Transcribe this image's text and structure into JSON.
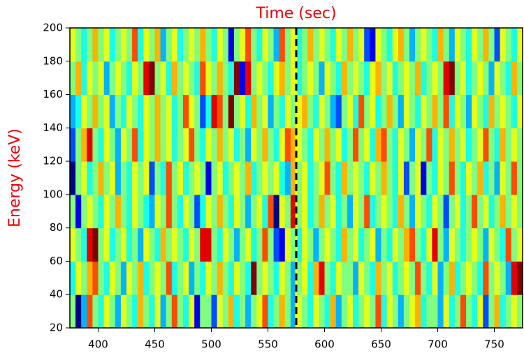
{
  "chart_data": {
    "type": "heatmap",
    "title": "Time (sec)",
    "ylabel": "Energy (keV)",
    "title_color": "#e8000b",
    "xlim": [
      375,
      775
    ],
    "xticks": [
      400,
      450,
      500,
      550,
      600,
      650,
      700,
      750
    ],
    "ylim": [
      20,
      200
    ],
    "yticks": [
      20,
      40,
      60,
      80,
      100,
      120,
      140,
      160,
      180,
      200
    ],
    "ybins": [
      20,
      40,
      60,
      80,
      100,
      120,
      140,
      160,
      180,
      200
    ],
    "colormap": "jet",
    "zlim": [
      0,
      10
    ],
    "vline": {
      "x": 575,
      "colors": [
        "#ffff00",
        "#000000"
      ]
    },
    "z": [
      [
        5,
        0,
        3,
        8,
        5,
        4,
        6,
        5,
        3,
        6,
        5,
        4,
        7,
        5,
        4,
        6,
        3,
        5,
        8,
        5,
        4,
        6,
        1,
        5,
        5,
        2,
        6,
        5,
        7,
        4,
        5,
        3,
        5,
        6,
        8,
        4,
        5,
        7,
        5,
        3,
        6,
        5,
        4,
        6,
        5,
        4,
        7,
        3,
        5,
        6,
        4,
        5,
        6,
        5,
        8,
        4,
        6,
        5,
        3,
        5,
        6,
        7,
        4,
        5,
        5,
        3,
        6,
        4,
        5,
        8,
        5,
        4,
        6,
        2,
        5,
        7,
        4,
        5,
        6,
        5
      ],
      [
        4,
        6,
        5,
        7,
        8,
        5,
        4,
        6,
        5,
        3,
        6,
        5,
        7,
        4,
        5,
        6,
        5,
        8,
        4,
        5,
        6,
        3,
        5,
        4,
        6,
        5,
        7,
        5,
        4,
        6,
        5,
        4,
        10,
        5,
        6,
        5,
        4,
        6,
        5,
        3,
        5,
        6,
        4,
        7,
        9,
        5,
        4,
        6,
        5,
        5,
        3,
        6,
        5,
        4,
        7,
        5,
        6,
        4,
        5,
        6,
        5,
        8,
        5,
        4,
        6,
        3,
        5,
        7,
        4,
        5,
        6,
        5,
        4,
        8,
        5,
        6,
        5,
        3,
        9,
        10
      ],
      [
        6,
        5,
        4,
        9,
        10,
        5,
        6,
        4,
        5,
        6,
        4,
        5,
        3,
        6,
        5,
        4,
        7,
        5,
        6,
        5,
        4,
        6,
        5,
        9,
        9,
        5,
        4,
        6,
        5,
        3,
        5,
        6,
        4,
        5,
        8,
        5,
        2,
        1,
        6,
        5,
        4,
        6,
        5,
        3,
        5,
        6,
        5,
        4,
        7,
        5,
        6,
        4,
        5,
        6,
        3,
        5,
        4,
        6,
        5,
        7,
        8,
        5,
        4,
        6,
        9,
        5,
        3,
        6,
        5,
        4,
        5,
        6,
        5,
        3,
        6,
        5,
        4,
        8,
        5,
        6
      ],
      [
        5,
        1,
        5,
        6,
        5,
        4,
        6,
        5,
        7,
        5,
        4,
        6,
        5,
        4,
        3,
        6,
        5,
        8,
        5,
        4,
        6,
        5,
        2,
        4,
        6,
        5,
        7,
        5,
        4,
        6,
        5,
        3,
        5,
        6,
        4,
        8,
        0,
        6,
        5,
        9,
        5,
        6,
        4,
        5,
        7,
        5,
        6,
        4,
        5,
        3,
        6,
        5,
        8,
        4,
        5,
        6,
        5,
        4,
        7,
        5,
        3,
        6,
        5,
        4,
        6,
        5,
        2,
        5,
        6,
        4,
        5,
        8,
        5,
        6,
        4,
        5,
        7,
        5,
        6,
        5
      ],
      [
        0,
        5,
        6,
        4,
        5,
        7,
        5,
        6,
        3,
        5,
        4,
        6,
        5,
        6,
        2,
        5,
        4,
        8,
        5,
        6,
        4,
        5,
        6,
        5,
        1,
        5,
        6,
        4,
        5,
        6,
        5,
        7,
        4,
        5,
        6,
        5,
        6,
        4,
        3,
        7,
        5,
        6,
        4,
        5,
        6,
        8,
        5,
        4,
        7,
        5,
        6,
        5,
        4,
        6,
        5,
        7,
        5,
        4,
        6,
        2,
        5,
        6,
        1,
        5,
        4,
        6,
        5,
        8,
        5,
        4,
        6,
        5,
        7,
        4,
        5,
        3,
        6,
        5,
        8,
        5
      ],
      [
        2,
        5,
        7,
        9,
        5,
        4,
        6,
        5,
        3,
        6,
        5,
        8,
        4,
        6,
        5,
        7,
        5,
        6,
        4,
        5,
        6,
        8,
        5,
        4,
        6,
        5,
        7,
        5,
        6,
        4,
        5,
        3,
        6,
        5,
        7,
        5,
        4,
        6,
        8,
        7,
        6,
        5,
        4,
        6,
        5,
        7,
        5,
        6,
        4,
        5,
        8,
        5,
        6,
        4,
        7,
        8,
        5,
        4,
        6,
        5,
        3,
        6,
        5,
        8,
        4,
        6,
        5,
        7,
        5,
        6,
        4,
        5,
        6,
        8,
        5,
        4,
        7,
        5,
        6,
        5
      ],
      [
        3,
        4,
        6,
        5,
        7,
        5,
        6,
        3,
        5,
        4,
        6,
        5,
        4,
        6,
        5,
        7,
        5,
        6,
        4,
        5,
        8,
        6,
        5,
        2,
        4,
        9,
        8,
        5,
        10,
        5,
        6,
        4,
        7,
        5,
        6,
        3,
        5,
        4,
        6,
        5,
        6,
        7,
        5,
        4,
        6,
        5,
        3,
        2,
        5,
        6,
        4,
        8,
        5,
        6,
        4,
        5,
        7,
        5,
        3,
        6,
        5,
        4,
        6,
        5,
        7,
        5,
        8,
        4,
        6,
        5,
        3,
        6,
        5,
        4,
        7,
        5,
        6,
        5,
        4,
        6
      ],
      [
        5,
        7,
        4,
        6,
        5,
        6,
        3,
        5,
        6,
        5,
        4,
        6,
        5,
        9,
        10,
        5,
        6,
        4,
        7,
        5,
        6,
        5,
        4,
        8,
        6,
        5,
        7,
        5,
        4,
        10,
        1,
        9,
        5,
        6,
        5,
        4,
        6,
        7,
        5,
        6,
        4,
        5,
        6,
        5,
        3,
        6,
        5,
        4,
        7,
        5,
        6,
        5,
        4,
        6,
        7,
        5,
        6,
        4,
        5,
        6,
        5,
        7,
        4,
        5,
        6,
        5,
        9,
        10,
        5,
        6,
        4,
        5,
        6,
        5,
        3,
        6,
        5,
        4,
        7,
        5
      ],
      [
        6,
        5,
        4,
        5,
        7,
        5,
        6,
        4,
        5,
        6,
        5,
        8,
        4,
        6,
        5,
        7,
        3,
        5,
        6,
        4,
        5,
        6,
        5,
        7,
        5,
        4,
        6,
        5,
        1,
        5,
        6,
        8,
        5,
        4,
        6,
        5,
        3,
        8,
        5,
        6,
        4,
        5,
        7,
        5,
        6,
        5,
        4,
        6,
        5,
        7,
        5,
        6,
        2,
        1,
        6,
        5,
        4,
        6,
        7,
        5,
        3,
        5,
        6,
        5,
        4,
        7,
        5,
        3,
        6,
        5,
        4,
        6,
        5,
        7,
        5,
        2,
        6,
        5,
        4,
        6
      ]
    ]
  }
}
